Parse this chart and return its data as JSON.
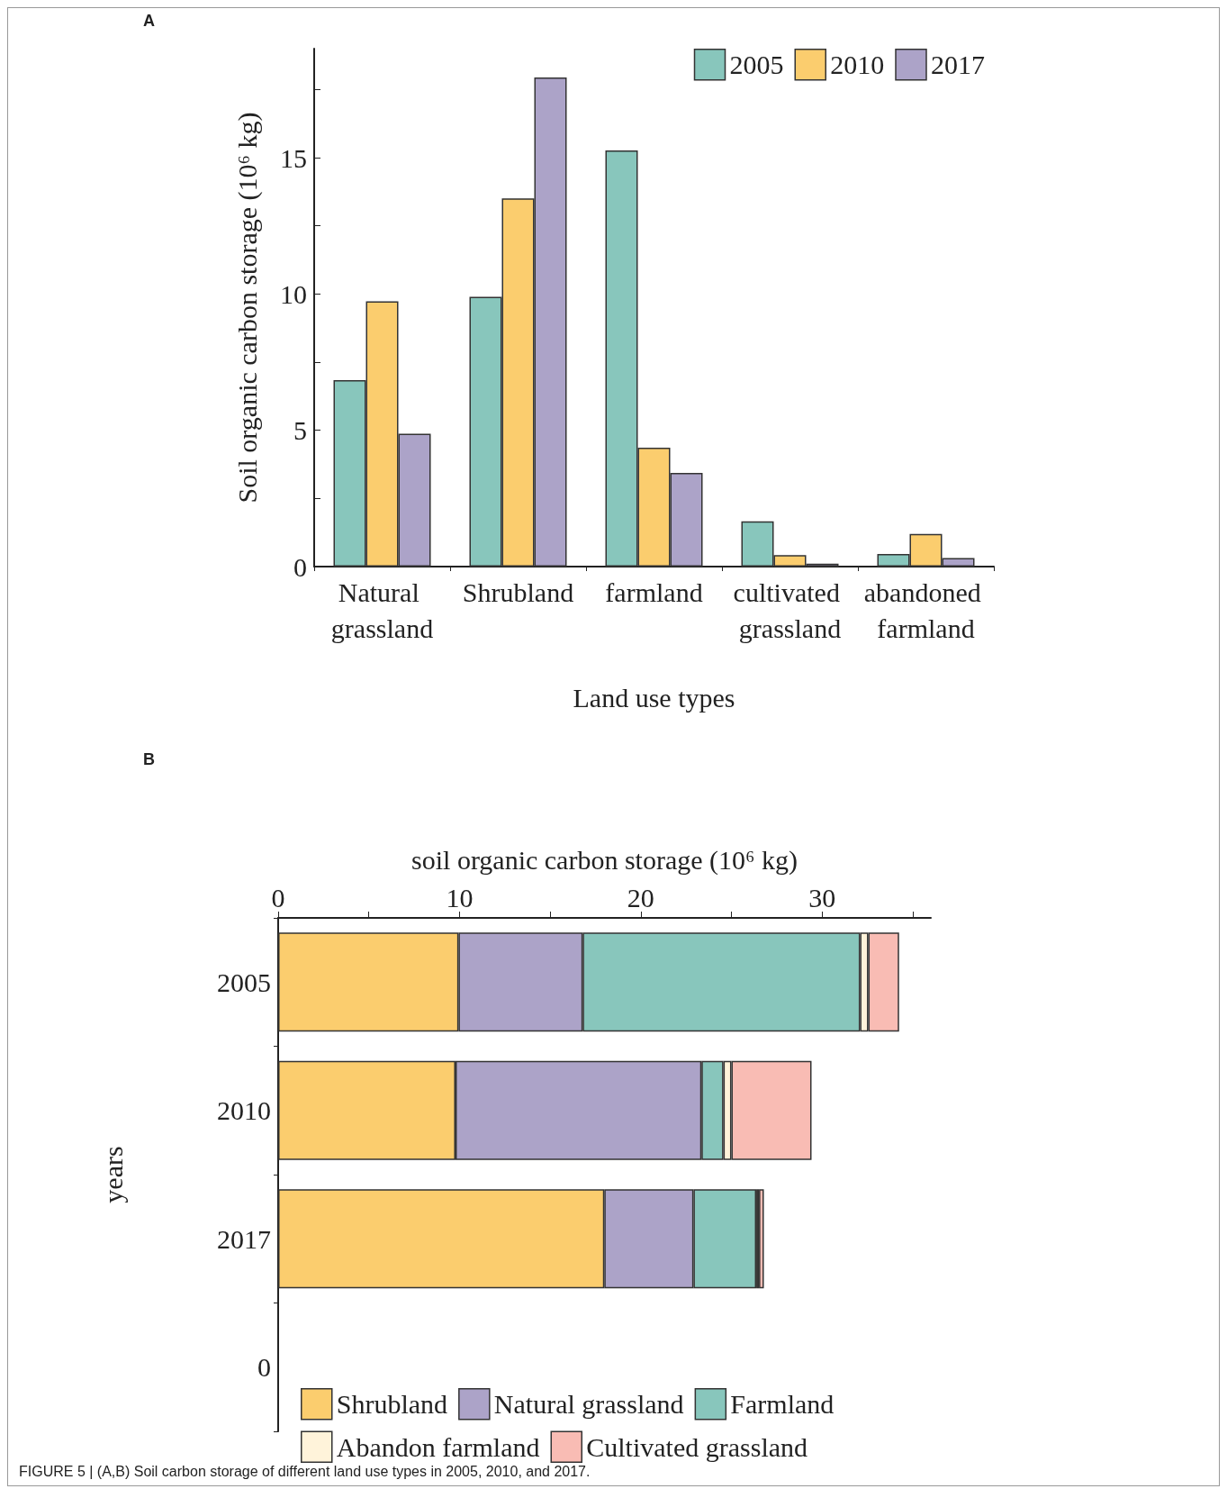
{
  "chart_data": [
    {
      "type": "bar",
      "annotations": [
        "A"
      ],
      "xlabel": "Land use types",
      "ylabel": "Soil organic carbon storage (10⁶ kg)",
      "categories": [
        "Natural grassland",
        "Shrubland",
        "farmland",
        "cultivated grassland",
        "abandoned farmland"
      ],
      "series": [
        {
          "name": "2005",
          "color": "#88c6bc",
          "values": [
            6.84,
            9.9,
            15.27,
            1.66,
            0.46
          ]
        },
        {
          "name": "2010",
          "color": "#fbcd6e",
          "values": [
            9.73,
            13.51,
            4.36,
            0.42,
            1.2
          ]
        },
        {
          "name": "2017",
          "color": "#aca3c8",
          "values": [
            4.87,
            17.94,
            3.44,
            0.11,
            0.31
          ]
        }
      ],
      "ylim": [
        0,
        19
      ],
      "yticks": [
        0,
        {
          "value": 2.5,
          "label": null
        },
        5,
        {
          "value": 7.5,
          "label": null
        },
        10,
        {
          "value": 12.5,
          "label": null
        },
        15,
        {
          "value": 17.5,
          "label": null
        }
      ],
      "legend": "top right"
    },
    {
      "type": "bar",
      "orientation": "horizontal",
      "stacked": true,
      "annotations": [
        "B",
        "FIGURE 5 | (A,B) Soil carbon storage of different land use types in 2005, 2010, and 2017."
      ],
      "xlabel": "soil organic carbon storage (10⁶ kg)",
      "ylabel": "years",
      "categories": [
        "2005",
        "2010",
        "2017",
        "0"
      ],
      "series": [
        {
          "name": "Shrubland",
          "color": "#fbcd6e",
          "values": [
            9.95,
            9.78,
            17.99,
            null
          ]
        },
        {
          "name": "Natural grassland",
          "color": "#aca3c8",
          "values": [
            6.85,
            13.57,
            4.92,
            null
          ]
        },
        {
          "name": "Farmland",
          "color": "#88c6bc",
          "values": [
            15.3,
            1.21,
            3.46,
            null
          ]
        },
        {
          "name": "Abandon farmland",
          "color": "#fff3da",
          "values": [
            0.45,
            0.44,
            0.15,
            null
          ]
        },
        {
          "name": "Cultivated grassland",
          "color": "#f9bcb4",
          "values": [
            1.7,
            4.42,
            0.27,
            null
          ]
        }
      ],
      "xlim": [
        0,
        36
      ],
      "xticks": [
        0,
        {
          "value": 5,
          "label": null
        },
        10,
        {
          "value": 15,
          "label": null
        },
        20,
        {
          "value": 25,
          "label": null
        },
        30,
        {
          "value": 35,
          "label": null
        }
      ],
      "legend": "bottom"
    }
  ]
}
